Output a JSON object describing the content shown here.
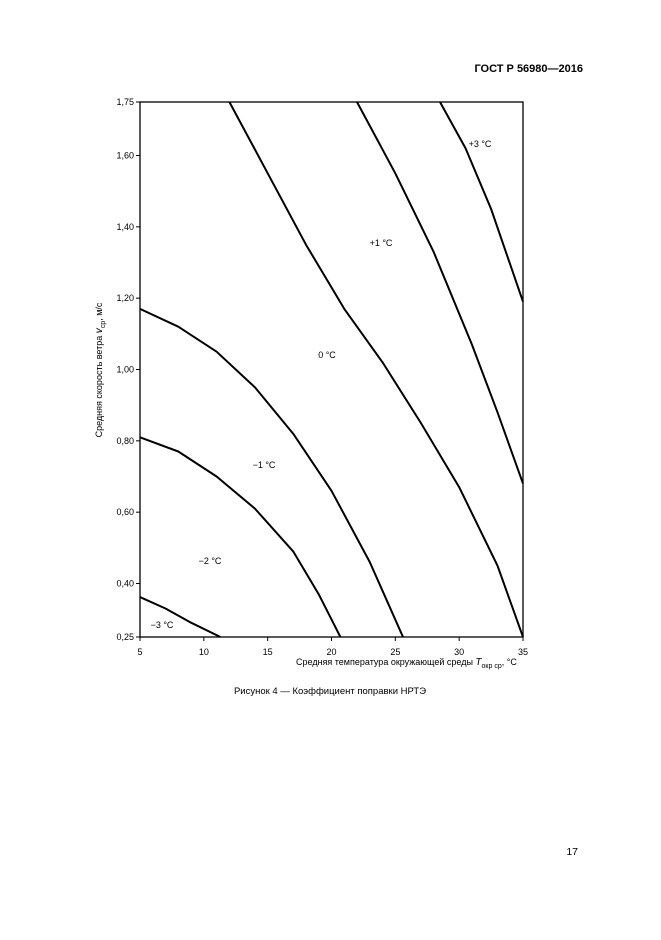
{
  "header": "ГОСТ Р 56980—2016",
  "chart_data": {
    "type": "line",
    "x_label": [
      "Средняя температура окружающей среды ",
      "T",
      "окр ср",
      ", °C"
    ],
    "y_label": [
      "Средняя скорость ветра ",
      "v",
      "ср",
      ", м/с"
    ],
    "xlim": [
      5,
      35
    ],
    "xticks": [
      5,
      10,
      15,
      20,
      25,
      30,
      35
    ],
    "ylim": [
      0.25,
      1.75
    ],
    "yticks": [
      {
        "value": 0.25,
        "label": "0,25"
      },
      {
        "value": 0.4,
        "label": "0,40"
      },
      {
        "value": 0.6,
        "label": "0,60"
      },
      {
        "value": 0.8,
        "label": "0,80"
      },
      {
        "value": 1.0,
        "label": "1,00"
      },
      {
        "value": 1.2,
        "label": "1,20"
      },
      {
        "value": 1.4,
        "label": "1,40"
      },
      {
        "value": 1.6,
        "label": "1,60"
      },
      {
        "value": 1.75,
        "label": "1,75"
      }
    ],
    "series": [
      {
        "color": "#000000",
        "x": [
          5,
          7,
          9,
          11.3
        ],
        "values": [
          0.362,
          0.33,
          0.29,
          0.25
        ]
      },
      {
        "color": "#000000",
        "x": [
          5,
          8,
          11,
          14,
          17,
          19,
          20.7
        ],
        "values": [
          0.81,
          0.77,
          0.7,
          0.61,
          0.49,
          0.37,
          0.25
        ]
      },
      {
        "color": "#000000",
        "x": [
          5,
          8,
          11,
          14,
          17,
          20,
          23,
          25.6
        ],
        "values": [
          1.17,
          1.12,
          1.05,
          0.95,
          0.82,
          0.66,
          0.46,
          0.25
        ]
      },
      {
        "color": "#000000",
        "x": [
          12,
          15,
          18,
          21,
          24,
          27,
          30,
          33,
          35
        ],
        "values": [
          1.75,
          1.55,
          1.35,
          1.17,
          1.02,
          0.85,
          0.67,
          0.45,
          0.25
        ]
      },
      {
        "color": "#000000",
        "x": [
          22,
          25,
          28,
          31,
          33,
          35
        ],
        "values": [
          1.75,
          1.55,
          1.33,
          1.07,
          0.88,
          0.68
        ]
      },
      {
        "color": "#000000",
        "x": [
          28.5,
          30.5,
          32.5,
          35
        ],
        "values": [
          1.75,
          1.62,
          1.45,
          1.19
        ]
      }
    ],
    "annotations": [
      "+3 °C",
      "+1 °C",
      "0 °C",
      "−1 °C",
      "−2 °C",
      "−3 °C"
    ]
  },
  "caption": "Рисунок 4 — Коэффициент поправки НРТЭ",
  "page_number": "17"
}
